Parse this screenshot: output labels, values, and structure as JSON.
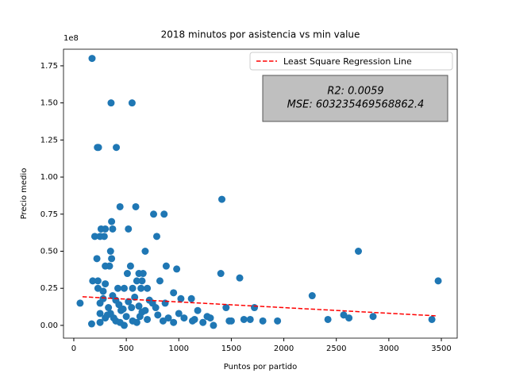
{
  "chart_data": {
    "type": "scatter",
    "title": "2018 minutos por asistencia vs min value",
    "xlabel": "Puntos por partido",
    "ylabel": "Precio medio",
    "y_offset_label": "1e8",
    "color": "#1f77b4",
    "x": [
      174,
      355,
      555,
      225,
      235,
      405,
      440,
      590,
      1410,
      760,
      860,
      360,
      260,
      300,
      370,
      520,
      200,
      250,
      290,
      790,
      350,
      680,
      2710,
      220,
      360,
      300,
      340,
      540,
      880,
      980,
      1400,
      510,
      620,
      660,
      1580,
      3470,
      180,
      230,
      600,
      650,
      820,
      300,
      60,
      230,
      280,
      420,
      480,
      560,
      640,
      700,
      2270,
      950,
      1120,
      1020,
      870,
      1450,
      1720,
      170,
      250,
      300,
      350,
      400,
      450,
      500,
      550,
      600,
      650,
      700,
      750,
      800,
      850,
      900,
      950,
      1000,
      1050,
      1130,
      1150,
      1180,
      1230,
      1270,
      1300,
      1330,
      1480,
      1500,
      1620,
      1680,
      1800,
      1940,
      2420,
      2570,
      2620,
      2850,
      3410,
      250,
      280,
      330,
      370,
      400,
      430,
      470,
      520,
      580,
      620,
      680,
      720,
      780,
      320,
      380,
      440,
      480,
      560,
      630,
      250
    ],
    "values": [
      1.8,
      1.5,
      1.5,
      1.2,
      1.2,
      1.2,
      0.8,
      0.8,
      0.85,
      0.75,
      0.75,
      0.7,
      0.65,
      0.65,
      0.65,
      0.65,
      0.6,
      0.6,
      0.6,
      0.6,
      0.5,
      0.5,
      0.5,
      0.45,
      0.45,
      0.4,
      0.4,
      0.4,
      0.4,
      0.38,
      0.35,
      0.35,
      0.35,
      0.35,
      0.32,
      0.3,
      0.3,
      0.3,
      0.3,
      0.3,
      0.3,
      0.28,
      0.15,
      0.25,
      0.23,
      0.25,
      0.25,
      0.25,
      0.25,
      0.25,
      0.2,
      0.22,
      0.18,
      0.18,
      0.15,
      0.12,
      0.12,
      0.01,
      0.02,
      0.05,
      0.08,
      0.03,
      0.1,
      0.06,
      0.12,
      0.02,
      0.09,
      0.04,
      0.15,
      0.07,
      0.03,
      0.05,
      0.02,
      0.08,
      0.05,
      0.03,
      0.04,
      0.1,
      0.02,
      0.06,
      0.05,
      0.0,
      0.03,
      0.03,
      0.04,
      0.04,
      0.03,
      0.03,
      0.04,
      0.07,
      0.05,
      0.06,
      0.04,
      0.15,
      0.18,
      0.12,
      0.2,
      0.17,
      0.14,
      0.11,
      0.16,
      0.19,
      0.13,
      0.1,
      0.17,
      0.12,
      0.07,
      0.05,
      0.02,
      0.0,
      0.03,
      0.06,
      0.08
    ],
    "regression": {
      "name": "Least Square Regression Line",
      "color": "#ff0000",
      "x": [
        83,
        3460
      ],
      "values": [
        0.193,
        0.064
      ]
    },
    "annotation": [
      "R2: 0.0059",
      "MSE: 603235469568862.4"
    ],
    "legend": "upper right",
    "xlim": [
      -98,
      3651
    ],
    "ylim": [
      -0.086,
      1.862
    ],
    "xticks": [
      0,
      500,
      1000,
      1500,
      2000,
      2500,
      3000,
      3500
    ],
    "yticks": [
      {
        "value": 0,
        "label": "0.00"
      },
      {
        "value": 0.25,
        "label": "0.25"
      },
      {
        "value": 0.5,
        "label": "0.50"
      },
      {
        "value": 0.75,
        "label": "0.75"
      },
      {
        "value": 1,
        "label": "1.00"
      },
      {
        "value": 1.25,
        "label": "1.25"
      },
      {
        "value": 1.5,
        "label": "1.50"
      },
      {
        "value": 1.75,
        "label": "1.75"
      }
    ]
  }
}
